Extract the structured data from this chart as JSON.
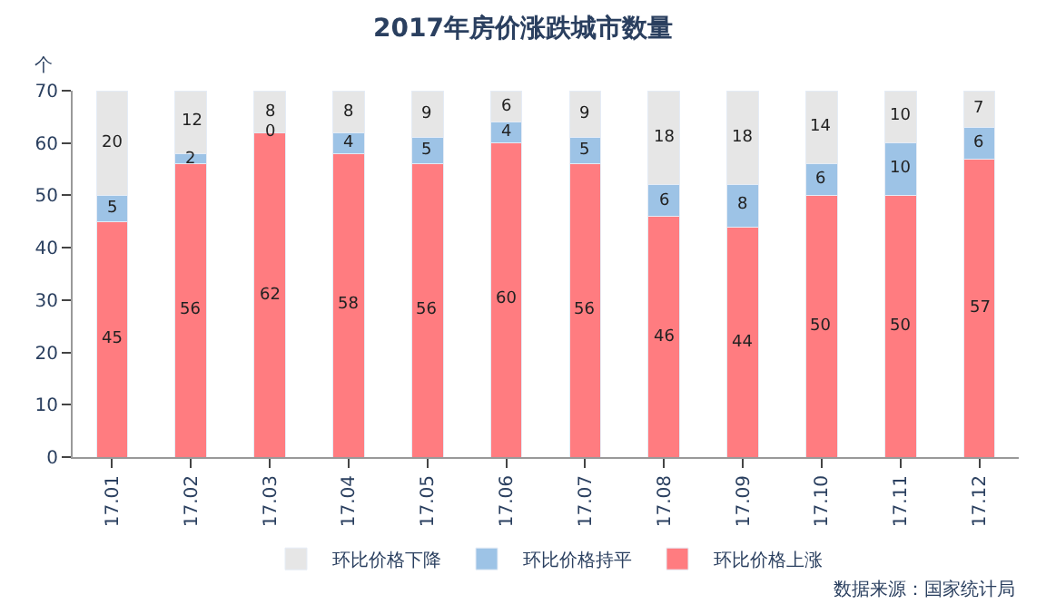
{
  "chart_data": {
    "type": "bar",
    "title": "2017年房价涨跌城市数量",
    "ylabel": "个",
    "stacked": true,
    "data_labels": true,
    "legend": "bottom",
    "grid": false,
    "categories": [
      "17.01",
      "17.02",
      "17.03",
      "17.04",
      "17.05",
      "17.06",
      "17.07",
      "17.08",
      "17.09",
      "17.10",
      "17.11",
      "17.12"
    ],
    "series": [
      {
        "name": "环比价格上涨",
        "color": "#ff7c80",
        "values": [
          45,
          56,
          62,
          58,
          56,
          60,
          56,
          46,
          44,
          50,
          50,
          57
        ]
      },
      {
        "name": "环比价格持平",
        "color": "#9dc3e6",
        "values": [
          5,
          2,
          0,
          4,
          5,
          4,
          5,
          6,
          8,
          6,
          10,
          6
        ]
      },
      {
        "name": "环比价格下降",
        "color": "#e6e6e6",
        "values": [
          20,
          12,
          8,
          8,
          9,
          6,
          9,
          18,
          18,
          14,
          10,
          7
        ]
      }
    ],
    "ylim": [
      0,
      70
    ],
    "yticks": [
      0,
      10,
      20,
      30,
      40,
      50,
      60,
      70
    ],
    "annotations": [
      "数据来源：国家统计局"
    ]
  }
}
